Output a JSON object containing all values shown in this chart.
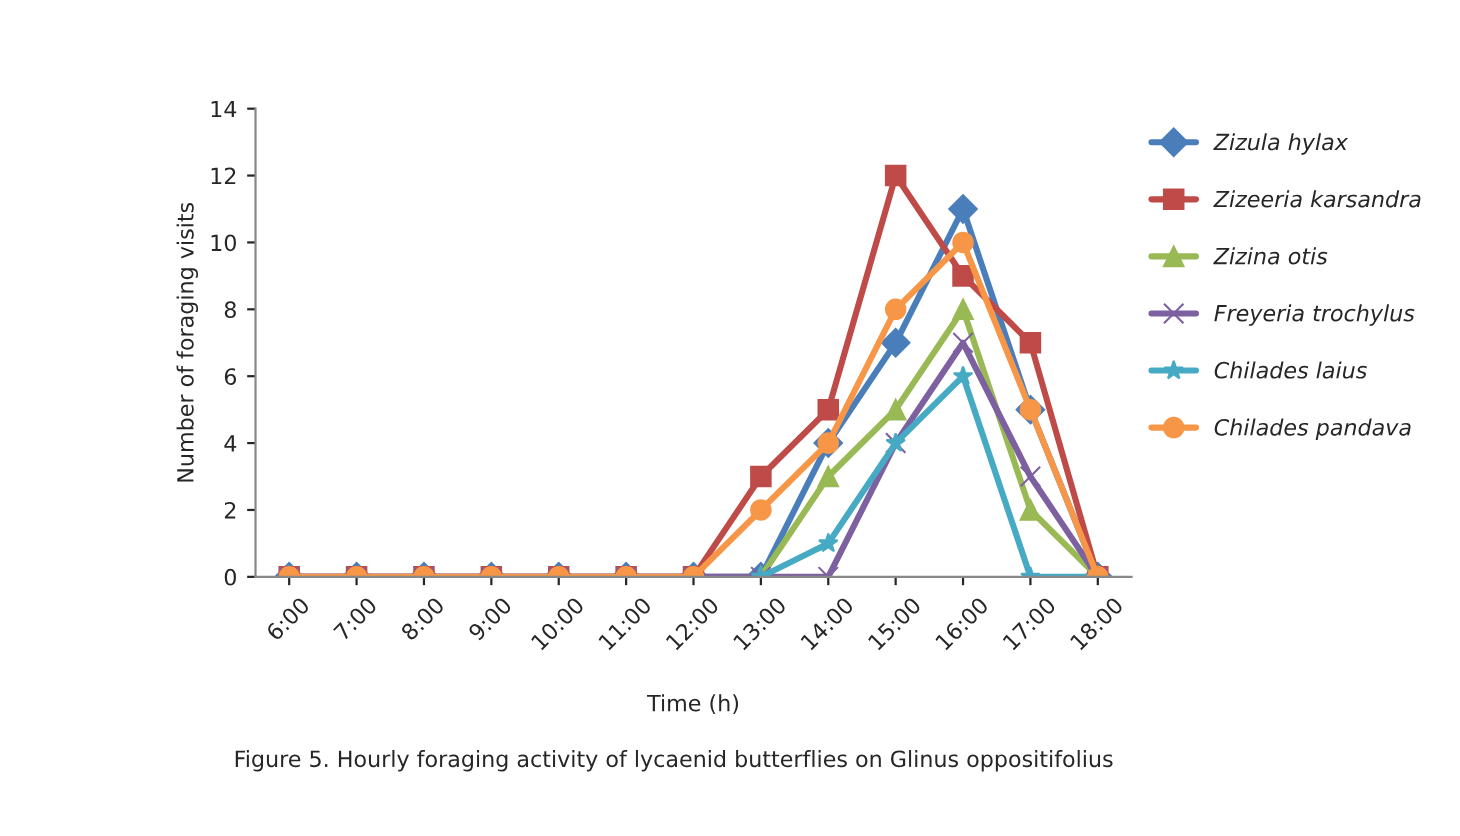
{
  "chart_data": {
    "type": "line",
    "xlabel": "Time (h)",
    "ylabel": "Number of foraging visits",
    "annotations": [
      "Figure 5. Hourly foraging activity of lycaenid butterflies on Glinus oppositifolius"
    ],
    "categories": [
      "6:00",
      "7:00",
      "8:00",
      "9:00",
      "10:00",
      "11:00",
      "12:00",
      "13:00",
      "14:00",
      "15:00",
      "16:00",
      "17:00",
      "18:00"
    ],
    "series": [
      {
        "name": "Zizula hylax",
        "color": "#4a7ebb",
        "marker": "diamond",
        "values": [
          0,
          0,
          0,
          0,
          0,
          0,
          0,
          0,
          4,
          7,
          11,
          5,
          0
        ]
      },
      {
        "name": "Zizeeria karsandra",
        "color": "#be4b48",
        "marker": "square",
        "values": [
          0,
          0,
          0,
          0,
          0,
          0,
          0,
          3,
          5,
          12,
          9,
          7,
          0
        ]
      },
      {
        "name": "Zizina otis",
        "color": "#98b954",
        "marker": "triangle",
        "values": [
          null,
          null,
          null,
          null,
          null,
          null,
          null,
          0,
          3,
          5,
          8,
          2,
          0
        ]
      },
      {
        "name": "Freyeria trochylus",
        "color": "#7d60a0",
        "marker": "cross",
        "values": [
          0,
          0,
          0,
          0,
          0,
          0,
          0,
          0,
          0,
          4,
          7,
          3,
          0
        ]
      },
      {
        "name": "Chilades laius",
        "color": "#46aac5",
        "marker": "star",
        "values": [
          null,
          null,
          null,
          null,
          null,
          null,
          null,
          0,
          1,
          4,
          6,
          0,
          0
        ]
      },
      {
        "name": "Chilades pandava",
        "color": "#f79646",
        "marker": "circle",
        "values": [
          0,
          0,
          0,
          0,
          0,
          0,
          0,
          2,
          4,
          8,
          10,
          5,
          0
        ]
      }
    ],
    "ylim": [
      0,
      14
    ],
    "yticks": [
      0,
      2,
      4,
      6,
      8,
      10,
      12,
      14
    ],
    "grid": false,
    "legend": "right"
  }
}
